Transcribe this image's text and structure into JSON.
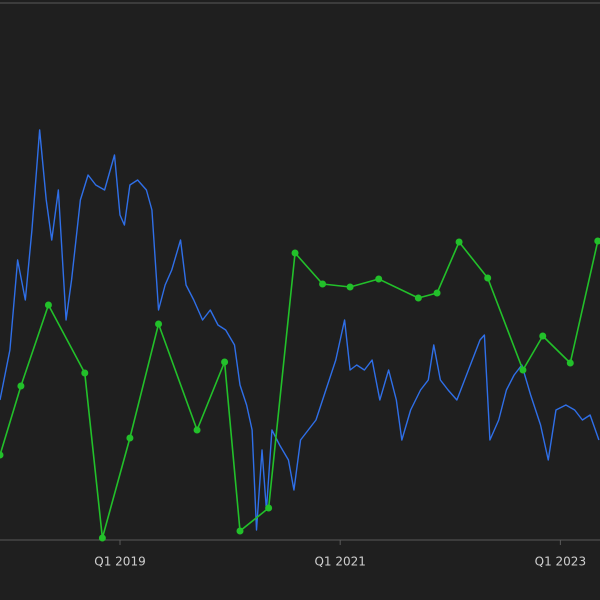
{
  "chart_data": {
    "type": "line",
    "xlim": [
      2017.91,
      2023.36
    ],
    "ylim": [
      0,
      540
    ],
    "xticks": [
      {
        "value": 2019,
        "label": "Q1 2019"
      },
      {
        "value": 2021,
        "label": "Q1 2021"
      },
      {
        "value": 2023,
        "label": "Q1 2023"
      }
    ],
    "series": [
      {
        "color": "#2f6fe8",
        "markers": false,
        "x": [
          2017.91,
          2018.0,
          2018.07,
          2018.14,
          2018.2,
          2018.27,
          2018.33,
          2018.38,
          2018.44,
          2018.51,
          2018.56,
          2018.64,
          2018.71,
          2018.78,
          2018.86,
          2018.95,
          2019.0,
          2019.04,
          2019.09,
          2019.16,
          2019.24,
          2019.29,
          2019.35,
          2019.41,
          2019.47,
          2019.55,
          2019.6,
          2019.67,
          2019.75,
          2019.82,
          2019.89,
          2019.96,
          2020.04,
          2020.09,
          2020.15,
          2020.2,
          2020.24,
          2020.29,
          2020.33,
          2020.38,
          2020.45,
          2020.53,
          2020.58,
          2020.64,
          2020.71,
          2020.78,
          2020.87,
          2020.96,
          2021.04,
          2021.09,
          2021.15,
          2021.22,
          2021.29,
          2021.36,
          2021.44,
          2021.51,
          2021.56,
          2021.64,
          2021.73,
          2021.8,
          2021.85,
          2021.91,
          2021.98,
          2022.06,
          2022.13,
          2022.2,
          2022.27,
          2022.31,
          2022.36,
          2022.44,
          2022.51,
          2022.58,
          2022.65,
          2022.73,
          2022.82,
          2022.89,
          2022.96,
          2023.05,
          2023.13,
          2023.2,
          2023.27,
          2023.35
        ],
        "values": [
          140,
          190,
          280,
          240,
          310,
          410,
          340,
          300,
          350,
          220,
          260,
          340,
          365,
          355,
          350,
          385,
          325,
          315,
          355,
          360,
          350,
          330,
          230,
          255,
          270,
          300,
          255,
          240,
          220,
          230,
          215,
          210,
          195,
          155,
          135,
          110,
          10,
          90,
          30,
          110,
          95,
          80,
          50,
          100,
          110,
          120,
          150,
          180,
          220,
          170,
          175,
          170,
          180,
          140,
          170,
          140,
          100,
          130,
          150,
          160,
          195,
          160,
          150,
          140,
          160,
          180,
          200,
          205,
          100,
          120,
          150,
          165,
          175,
          145,
          115,
          80,
          130,
          135,
          130,
          120,
          125,
          100
        ]
      },
      {
        "color": "#22c02a",
        "markers": true,
        "x": [
          2017.91,
          2018.1,
          2018.35,
          2018.68,
          2018.84,
          2019.09,
          2019.35,
          2019.7,
          2019.95,
          2020.09,
          2020.35,
          2020.59,
          2020.84,
          2021.09,
          2021.35,
          2021.71,
          2021.88,
          2022.08,
          2022.34,
          2022.66,
          2022.84,
          2023.09,
          2023.34
        ],
        "values": [
          85,
          154,
          235,
          167,
          2,
          102,
          216,
          110,
          178,
          9,
          32,
          287,
          256,
          253,
          261,
          242,
          247,
          298,
          262,
          170,
          204,
          177,
          299
        ]
      }
    ]
  }
}
